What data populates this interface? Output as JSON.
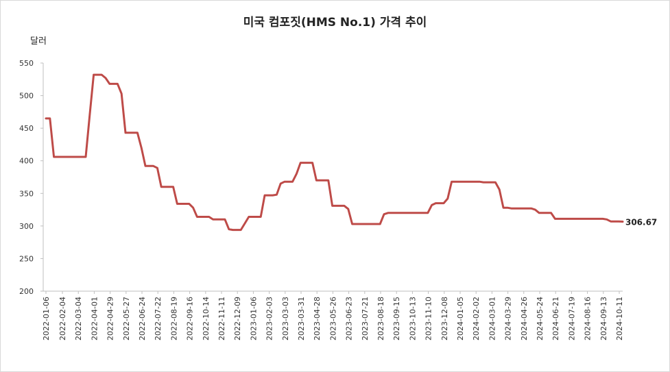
{
  "chart_data": {
    "type": "line",
    "title": "미국 컴포짓(HMS No.1) 가격 추이",
    "ylabel": "달러",
    "ylim": [
      200,
      550
    ],
    "yticks": [
      200,
      250,
      300,
      350,
      400,
      450,
      500,
      550
    ],
    "xlabel": "",
    "grid": false,
    "legend": "none",
    "last_value_label": "306.67",
    "x_tick_labels": [
      "2022-01-06",
      "2022-02-04",
      "2022-03-04",
      "2022-04-01",
      "2022-04-29",
      "2022-05-27",
      "2022-06-24",
      "2022-07-22",
      "2022-08-19",
      "2022-09-16",
      "2022-10-14",
      "2022-11-11",
      "2022-12-09",
      "2023-01-06",
      "2023-02-03",
      "2023-03-03",
      "2023-03-31",
      "2023-04-28",
      "2023-05-26",
      "2023-06-23",
      "2023-07-21",
      "2023-08-18",
      "2023-09-15",
      "2023-10-13",
      "2023-11-10",
      "2023-12-08",
      "2024-01-05",
      "2024-02-02",
      "2024-03-01",
      "2024-03-29",
      "2024-04-26",
      "2024-05-24",
      "2024-06-21",
      "2024-07-19",
      "2024-08-16",
      "2024-09-13",
      "2024-10-11"
    ],
    "series": [
      {
        "color": "#be4b48",
        "points": [
          [
            "2022-01-06",
            465
          ],
          [
            "2022-01-13",
            465
          ],
          [
            "2022-01-20",
            406
          ],
          [
            "2022-01-27",
            406
          ],
          [
            "2022-02-24",
            406
          ],
          [
            "2022-03-10",
            406
          ],
          [
            "2022-03-17",
            406
          ],
          [
            "2022-03-24",
            470
          ],
          [
            "2022-03-31",
            532
          ],
          [
            "2022-04-07",
            532
          ],
          [
            "2022-04-14",
            532
          ],
          [
            "2022-04-21",
            527
          ],
          [
            "2022-04-28",
            518
          ],
          [
            "2022-05-05",
            518
          ],
          [
            "2022-05-12",
            518
          ],
          [
            "2022-05-19",
            503
          ],
          [
            "2022-05-26",
            443
          ],
          [
            "2022-06-02",
            443
          ],
          [
            "2022-06-16",
            443
          ],
          [
            "2022-06-23",
            420
          ],
          [
            "2022-06-30",
            392
          ],
          [
            "2022-07-07",
            392
          ],
          [
            "2022-07-14",
            392
          ],
          [
            "2022-07-21",
            389
          ],
          [
            "2022-07-28",
            360
          ],
          [
            "2022-08-04",
            360
          ],
          [
            "2022-08-11",
            360
          ],
          [
            "2022-08-18",
            360
          ],
          [
            "2022-08-25",
            334
          ],
          [
            "2022-09-01",
            334
          ],
          [
            "2022-09-08",
            334
          ],
          [
            "2022-09-15",
            334
          ],
          [
            "2022-09-22",
            328
          ],
          [
            "2022-09-29",
            314
          ],
          [
            "2022-10-06",
            314
          ],
          [
            "2022-10-13",
            314
          ],
          [
            "2022-10-20",
            314
          ],
          [
            "2022-10-27",
            310
          ],
          [
            "2022-11-03",
            310
          ],
          [
            "2022-11-10",
            310
          ],
          [
            "2022-11-17",
            310
          ],
          [
            "2022-11-24",
            295
          ],
          [
            "2022-12-01",
            294
          ],
          [
            "2022-12-08",
            294
          ],
          [
            "2022-12-15",
            294
          ],
          [
            "2022-12-22",
            304
          ],
          [
            "2022-12-29",
            314
          ],
          [
            "2023-01-05",
            314
          ],
          [
            "2023-01-12",
            314
          ],
          [
            "2023-01-19",
            314
          ],
          [
            "2023-01-26",
            347
          ],
          [
            "2023-02-02",
            347
          ],
          [
            "2023-02-09",
            347
          ],
          [
            "2023-02-16",
            348
          ],
          [
            "2023-02-23",
            365
          ],
          [
            "2023-03-02",
            368
          ],
          [
            "2023-03-09",
            368
          ],
          [
            "2023-03-16",
            368
          ],
          [
            "2023-03-23",
            380
          ],
          [
            "2023-03-30",
            397
          ],
          [
            "2023-04-06",
            397
          ],
          [
            "2023-04-13",
            397
          ],
          [
            "2023-04-20",
            397
          ],
          [
            "2023-04-27",
            370
          ],
          [
            "2023-05-04",
            370
          ],
          [
            "2023-05-11",
            370
          ],
          [
            "2023-05-18",
            370
          ],
          [
            "2023-05-25",
            331
          ],
          [
            "2023-06-01",
            331
          ],
          [
            "2023-06-08",
            331
          ],
          [
            "2023-06-15",
            331
          ],
          [
            "2023-06-22",
            326
          ],
          [
            "2023-06-29",
            303
          ],
          [
            "2023-07-06",
            303
          ],
          [
            "2023-07-27",
            303
          ],
          [
            "2023-08-10",
            303
          ],
          [
            "2023-08-17",
            303
          ],
          [
            "2023-08-24",
            318
          ],
          [
            "2023-08-31",
            320
          ],
          [
            "2023-09-07",
            320
          ],
          [
            "2023-11-02",
            320
          ],
          [
            "2023-11-09",
            320
          ],
          [
            "2023-11-16",
            332
          ],
          [
            "2023-11-23",
            335
          ],
          [
            "2023-11-30",
            335
          ],
          [
            "2023-12-07",
            335
          ],
          [
            "2023-12-14",
            342
          ],
          [
            "2023-12-21",
            368
          ],
          [
            "2023-12-28",
            368
          ],
          [
            "2024-02-01",
            368
          ],
          [
            "2024-02-08",
            368
          ],
          [
            "2024-02-15",
            367
          ],
          [
            "2024-02-22",
            367
          ],
          [
            "2024-02-29",
            367
          ],
          [
            "2024-03-07",
            367
          ],
          [
            "2024-03-14",
            356
          ],
          [
            "2024-03-21",
            328
          ],
          [
            "2024-03-28",
            328
          ],
          [
            "2024-04-04",
            327
          ],
          [
            "2024-04-11",
            327
          ],
          [
            "2024-05-02",
            327
          ],
          [
            "2024-05-09",
            327
          ],
          [
            "2024-05-16",
            325
          ],
          [
            "2024-05-23",
            320
          ],
          [
            "2024-05-30",
            320
          ],
          [
            "2024-06-06",
            320
          ],
          [
            "2024-06-13",
            320
          ],
          [
            "2024-06-20",
            311
          ],
          [
            "2024-06-27",
            311
          ],
          [
            "2024-09-05",
            311
          ],
          [
            "2024-09-12",
            311
          ],
          [
            "2024-09-19",
            310
          ],
          [
            "2024-09-26",
            307
          ],
          [
            "2024-10-03",
            307
          ],
          [
            "2024-10-10",
            307
          ],
          [
            "2024-10-17",
            306.67
          ]
        ]
      }
    ]
  }
}
